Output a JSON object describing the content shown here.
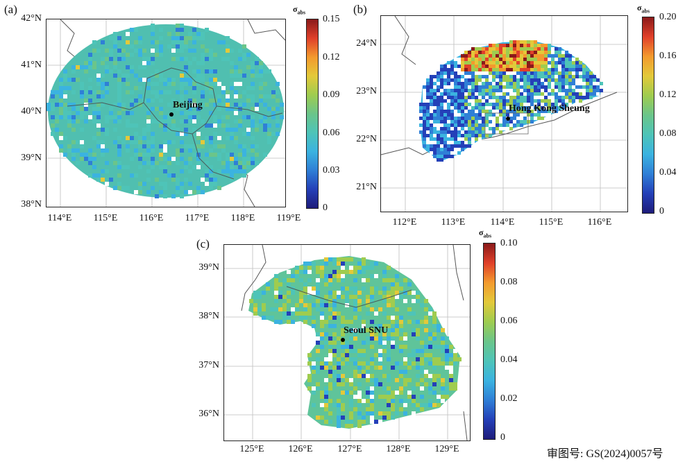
{
  "colors": {
    "cmap": [
      "#1e1c7a",
      "#2440b8",
      "#2f7fd6",
      "#3bb3e0",
      "#4ec4b8",
      "#6bc58a",
      "#9fcc4f",
      "#e3c93a",
      "#f39a2e",
      "#e0402a",
      "#8a1a1a"
    ],
    "frame": "#222222",
    "grid": "#bdbdbd",
    "boundary": "#555555"
  },
  "panels": [
    {
      "id": "a",
      "label": "(a)",
      "site": "Beijing",
      "lat_ticks": [
        "42°N",
        "41°N",
        "40°N",
        "39°N",
        "38°N"
      ],
      "lon_ticks": [
        "114°E",
        "115°E",
        "116°E",
        "117°E",
        "118°E",
        "119°E"
      ],
      "colorbar": {
        "title": "σ",
        "title_sub": "abs",
        "ticks": [
          "0.15",
          "0.12",
          "0.09",
          "0.06",
          "0.03",
          "0"
        ],
        "max": 0.15
      }
    },
    {
      "id": "b",
      "label": "(b)",
      "site": "Hong Kong Sheung",
      "lat_ticks": [
        "24°N",
        "23°N",
        "22°N",
        "21°N"
      ],
      "lon_ticks": [
        "112°E",
        "113°E",
        "114°E",
        "115°E",
        "116°E"
      ],
      "colorbar": {
        "title": "σ",
        "title_sub": "abs",
        "ticks": [
          "0.20",
          "0.16",
          "0.12",
          "0.08",
          "0.04",
          "0"
        ],
        "max": 0.2
      }
    },
    {
      "id": "c",
      "label": "(c)",
      "site": "Seoul SNU",
      "lat_ticks": [
        "39°N",
        "38°N",
        "37°N",
        "36°N"
      ],
      "lon_ticks": [
        "125°E",
        "126°E",
        "127°E",
        "128°E",
        "129°E"
      ],
      "colorbar": {
        "title": "σ",
        "title_sub": "abs",
        "ticks": [
          "0.10",
          "0.08",
          "0.06",
          "0.04",
          "0.02",
          "0"
        ],
        "max": 0.1
      }
    }
  ],
  "footer": "审图号: GS(2024)0057号"
}
